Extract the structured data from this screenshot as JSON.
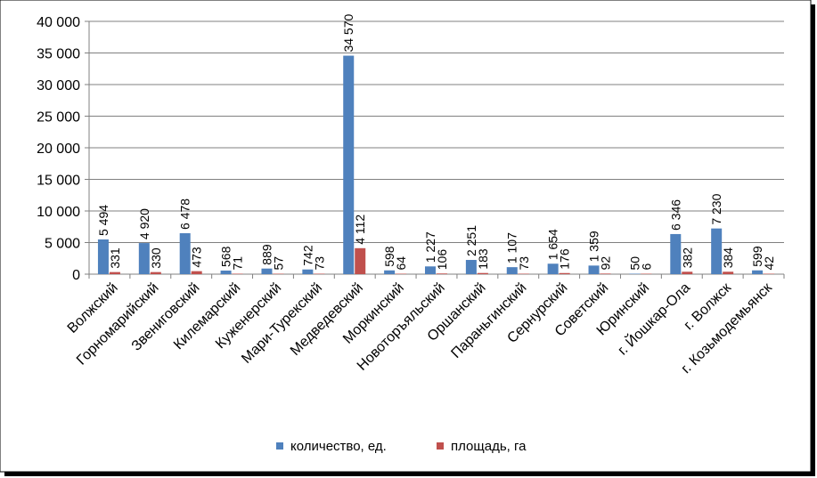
{
  "chart_data": {
    "type": "bar",
    "title": "",
    "xlabel": "",
    "ylabel": "",
    "ylim": [
      0,
      40000
    ],
    "yticks": [
      0,
      5000,
      10000,
      15000,
      20000,
      25000,
      30000,
      35000,
      40000
    ],
    "ytick_labels": [
      "0",
      "5 000",
      "10 000",
      "15 000",
      "20 000",
      "25 000",
      "30 000",
      "35 000",
      "40 000"
    ],
    "grid": true,
    "legend_position": "bottom",
    "categories": [
      "Волжский",
      "Горномарийский",
      "Звениговский",
      "Килемарский",
      "Куженерский",
      "Мари-Турекский",
      "Медведевский",
      "Моркинский",
      "Новоторъяльский",
      "Оршанский",
      "Параньгинский",
      "Сернурский",
      "Советский",
      "Юринский",
      "г. Йошкар-Ола",
      "г. Волжск",
      "г. Козьмодемьянск"
    ],
    "series": [
      {
        "name": "количество, ед.",
        "color": "#4F81BD",
        "values": [
          5494,
          4920,
          6478,
          568,
          889,
          742,
          34570,
          598,
          1227,
          2251,
          1107,
          1654,
          1359,
          50,
          6346,
          7230,
          599
        ],
        "labels": [
          "5 494",
          "4 920",
          "6 478",
          "568",
          "889",
          "742",
          "34 570",
          "598",
          "1 227",
          "2 251",
          "1 107",
          "1 654",
          "1 359",
          "50",
          "6 346",
          "7 230",
          "599"
        ]
      },
      {
        "name": "площадь, га",
        "color": "#C0504D",
        "values": [
          331,
          330,
          473,
          71,
          57,
          73,
          4112,
          64,
          106,
          183,
          73,
          176,
          92,
          6,
          382,
          384,
          42
        ],
        "labels": [
          "331",
          "330",
          "473",
          "71",
          "57",
          "73",
          "4 112",
          "64",
          "106",
          "183",
          "73",
          "176",
          "92",
          "6",
          "382",
          "384",
          "42"
        ]
      }
    ]
  }
}
